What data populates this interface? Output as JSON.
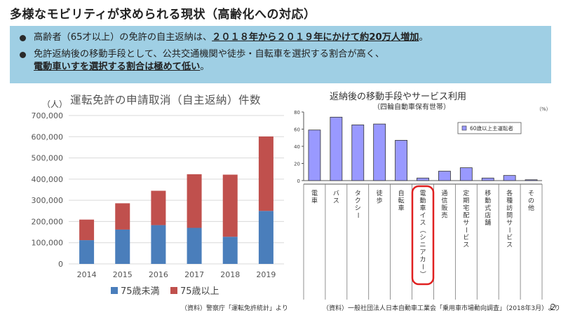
{
  "title": "多様なモビリティが求められる現状（高齢化への対応）",
  "callout": {
    "bullet1_pre": "高齢者（65才以上）の免許の自主返納は、",
    "bullet1_em": "２０１８年から２０１９年にかけて約20万人増加",
    "bullet1_post": "。",
    "bullet2_line1": "免許返納後の移動手段として、公共交通機関や徒歩・自転車を選択する割合が高く、",
    "bullet2_em": "電動車いすを選択する割合は極めて低い",
    "bullet2_post": "。"
  },
  "chart_left": {
    "title": "運転免許の申請取消（自主返納）件数",
    "unit": "（人）",
    "source": "（資料）警察庁「運転免許統計」より"
  },
  "chart_right": {
    "title": "返納後の移動手段やサービス利用",
    "subtitle": "（四輪自動車保有世帯）",
    "unit": "（%）",
    "source": "（資料）一般社団法人日本自動車工業会「乗用車市場動向調査」（2018年3月）より"
  },
  "page_number": "2",
  "colors": {
    "under75": "#4a7ebb",
    "over75": "#c0504d",
    "purple": "#9999ff",
    "highlight": "#e02020",
    "callout_bg": "#9fcfe4"
  },
  "chart_data": [
    {
      "type": "bar",
      "stacked": true,
      "categories": [
        "2014",
        "2015",
        "2016",
        "2017",
        "2018",
        "2019"
      ],
      "series": [
        {
          "name": "75歳未満",
          "values": [
            112000,
            162000,
            183000,
            170000,
            128000,
            250000
          ]
        },
        {
          "name": "75歳以上",
          "values": [
            97000,
            124000,
            162000,
            253000,
            293000,
            351000
          ]
        }
      ],
      "ylim": [
        0,
        700000
      ],
      "yticks": [
        0,
        100000,
        200000,
        300000,
        400000,
        500000,
        600000,
        700000
      ],
      "ytick_labels": [
        "0",
        "100,000",
        "200,000",
        "300,000",
        "400,000",
        "500,000",
        "600,000",
        "700,000"
      ],
      "grid": true,
      "legend": "bottom"
    },
    {
      "type": "bar",
      "categories": [
        "電車",
        "バス",
        "タクシー",
        "徒歩",
        "自転車",
        "電動車イス（シニアカー）",
        "通信販売",
        "定期宅配サービス",
        "移動式店舗",
        "各種訪問サービス",
        "その他"
      ],
      "series": [
        {
          "name": "60歳以上主運転者",
          "values": [
            59,
            74,
            65,
            66,
            47,
            3,
            11,
            15,
            3,
            6,
            1
          ]
        }
      ],
      "ylim": [
        0,
        80
      ],
      "yticks": [
        0,
        20,
        40,
        60,
        80
      ],
      "highlight_category": "電動車イス（シニアカー）",
      "legend": "top-right"
    }
  ]
}
